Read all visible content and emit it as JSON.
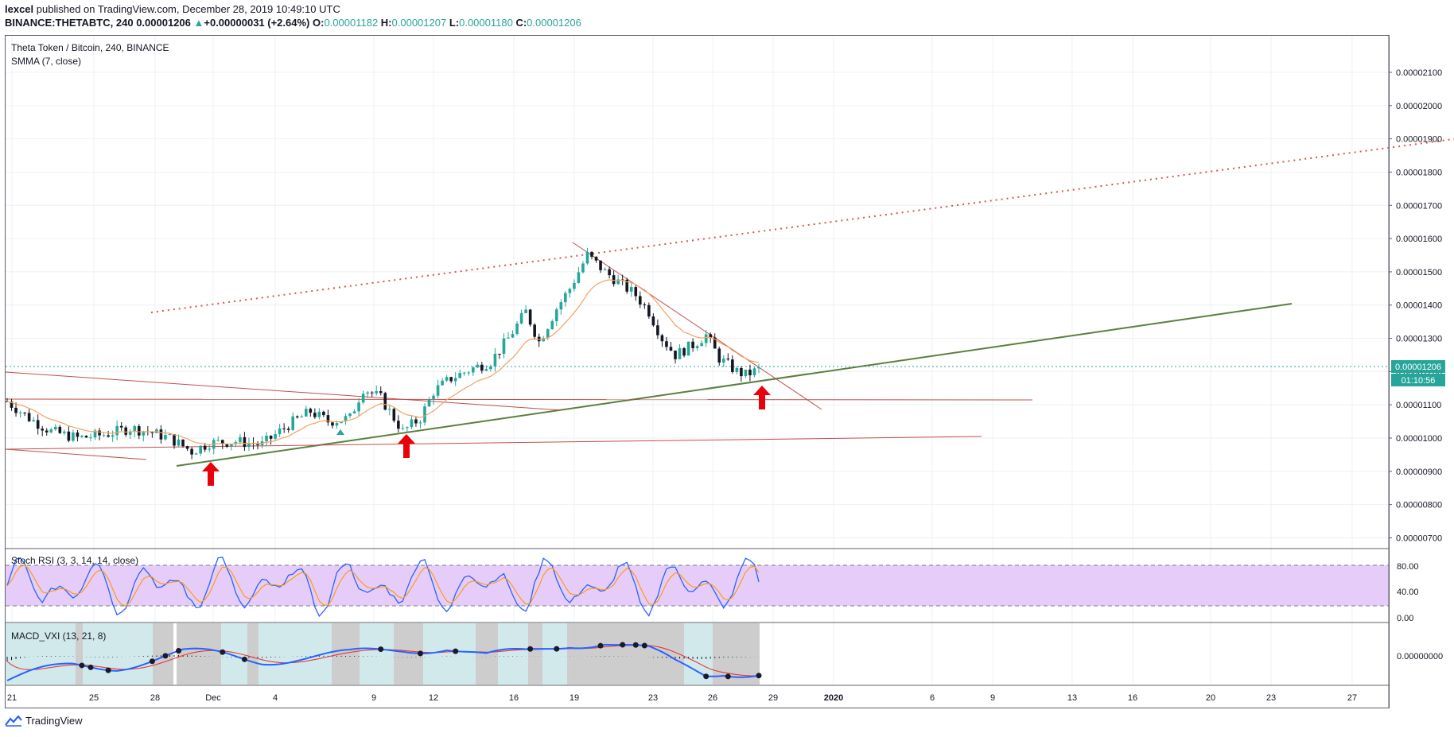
{
  "header": {
    "author": "lexcel",
    "published_text": "published on TradingView.com, December 28, 2019 10:49:10 UTC",
    "symbol": "BINANCE:THETABTC, 240",
    "last": "0.00001206",
    "change_arrow": "▲",
    "change": "+0.00000031 (+2.64%)",
    "o_label": "O:",
    "o": "0.00001182",
    "h_label": "H:",
    "h": "0.00001207",
    "l_label": "L:",
    "l": "0.00001180",
    "c_label": "C:",
    "c": "0.00001206"
  },
  "main_pane": {
    "title": "Theta Token / Bitcoin, 240, BINANCE",
    "indicator": "SMMA (7, close)",
    "price_label": "0.00001206",
    "countdown": "01:10:56"
  },
  "stoch_pane": {
    "title": "Stoch RSI (3, 3, 14, 14, close)",
    "ticks": [
      "80.00",
      "40.00",
      "0.00"
    ]
  },
  "macd_pane": {
    "title": "MACD_VXI (13, 21, 8)",
    "tick": "0.00000000"
  },
  "footer": {
    "brand": "TradingView",
    "logo_icon": "tradingview-logo-icon"
  },
  "colors": {
    "up": "#26a69a",
    "down": "#131722",
    "smma": "#f4a261",
    "red_line": "#c0392b",
    "green_line": "#5a7d3a",
    "stoch_band": "#e1c8f7",
    "price_bg": "#26a69a"
  },
  "chart_data": [
    {
      "type": "candlestick",
      "title": "Theta Token / Bitcoin, 240, BINANCE",
      "x_ticks": [
        "21",
        "25",
        "28",
        "Dec",
        "4",
        "9",
        "12",
        "16",
        "19",
        "23",
        "26",
        "29",
        "2020",
        "6",
        "9",
        "13",
        "16",
        "20",
        "23",
        "27"
      ],
      "y_ticks": [
        "0.00002100",
        "0.00002000",
        "0.00001900",
        "0.00001800",
        "0.00001700",
        "0.00001600",
        "0.00001500",
        "0.00001400",
        "0.00001300",
        "0.00001200",
        "0.00001100",
        "0.00001000",
        "0.00000900",
        "0.00000800",
        "0.00000700"
      ],
      "ylim": [
        6.7e-06,
        2.21e-05
      ],
      "last_price": 1.206e-05,
      "price_path": [
        [
          0,
          1.11e-05
        ],
        [
          5,
          1.06e-05
        ],
        [
          10,
          1.02e-05
        ],
        [
          16,
          1e-05
        ],
        [
          22,
          1.01e-05
        ],
        [
          28,
          1.03e-05
        ],
        [
          32,
          1.02e-05
        ],
        [
          37,
          1e-05
        ],
        [
          42,
          9.6e-06
        ],
        [
          46,
          9.85e-06
        ],
        [
          52,
          9.9e-06
        ],
        [
          58,
          9.8e-06
        ],
        [
          64,
          1.04e-05
        ],
        [
          69,
          1.08e-05
        ],
        [
          73,
          1.05e-05
        ],
        [
          78,
          1.06e-05
        ],
        [
          81,
          1.15e-05
        ],
        [
          85,
          1.12e-05
        ],
        [
          90,
          1.02e-05
        ],
        [
          94,
          1.06e-05
        ],
        [
          97,
          1.14e-05
        ],
        [
          101,
          1.18e-05
        ],
        [
          106,
          1.21e-05
        ],
        [
          110,
          1.23e-05
        ],
        [
          114,
          1.3e-05
        ],
        [
          118,
          1.38e-05
        ],
        [
          121,
          1.29e-05
        ],
        [
          125,
          1.39e-05
        ],
        [
          128,
          1.45e-05
        ],
        [
          132,
          1.55e-05
        ],
        [
          136,
          1.5e-05
        ],
        [
          140,
          1.46e-05
        ],
        [
          143,
          1.43e-05
        ],
        [
          146,
          1.38e-05
        ],
        [
          149,
          1.3e-05
        ],
        [
          152,
          1.25e-05
        ],
        [
          156,
          1.28e-05
        ],
        [
          159,
          1.31e-05
        ],
        [
          162,
          1.24e-05
        ],
        [
          166,
          1.2e-05
        ],
        [
          168,
          1.19e-05
        ],
        [
          171,
          1.206e-05
        ]
      ],
      "annotations": [
        "Up arrow at Dec 1 support",
        "Up arrow at Dec 10 support",
        "Up arrow at Dec 28 support"
      ]
    },
    {
      "type": "line",
      "title": "Stoch RSI (3, 3, 14, 14, close)",
      "ylim": [
        0,
        100
      ],
      "bands": [
        20,
        80
      ]
    },
    {
      "type": "line",
      "title": "MACD_VXI (13, 21, 8)"
    }
  ]
}
